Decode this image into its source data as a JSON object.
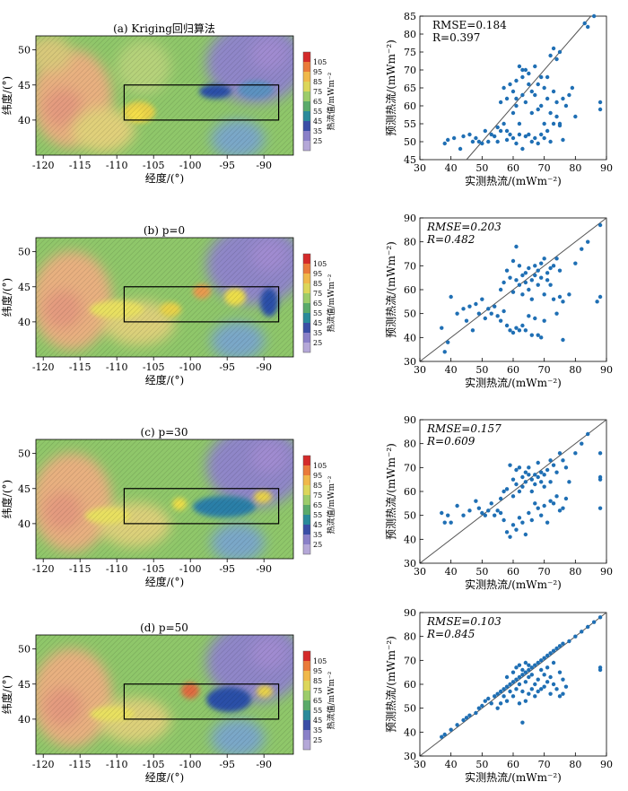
{
  "figure": {
    "map": {
      "xlabel": "经度/(°)",
      "ylabel": "纬度/(°)",
      "cbar_label": "热流值/mWm⁻²",
      "cbar_ticks": [
        25,
        35,
        45,
        55,
        65,
        75,
        85,
        95,
        105
      ],
      "xticks": [
        -120,
        -115,
        -110,
        -105,
        -100,
        -95,
        -90
      ],
      "xtick_labels": [
        "-120",
        "-115",
        "-110",
        "-105",
        "-100",
        "-95",
        "-90"
      ],
      "yticks": [
        40,
        45,
        50
      ],
      "study_box": {
        "lon": [
          -109,
          -88
        ],
        "lat": [
          40,
          45
        ]
      },
      "extent": {
        "lon": [
          -121,
          -86
        ],
        "lat": [
          35,
          52
        ]
      }
    },
    "scatter": {
      "xlabel": "实测热流/(mWm⁻²)",
      "ylabel": "预测热流/(mWm⁻²)"
    }
  },
  "panels": [
    {
      "title": "(a) Kriging回归算法",
      "metric1": "RMSE=0.184",
      "metric2": "R=0.397"
    },
    {
      "title": "(b) p=0",
      "metric1": "RMSE=0.203",
      "metric2": "R=0.482"
    },
    {
      "title": "(c) p=30",
      "metric1": "RMSE=0.157",
      "metric2": "R=0.609"
    },
    {
      "title": "(d) p=50",
      "metric1": "RMSE=0.103",
      "metric2": "R=0.845"
    }
  ],
  "chart_data": [
    {
      "type": "heatmap",
      "title": "(a) Kriging回归算法",
      "xlabel": "经度/(°)",
      "ylabel": "纬度/(°)",
      "xlim": [
        -121,
        -86
      ],
      "ylim": [
        35,
        52
      ],
      "colorbar": "热流值/mWm⁻²",
      "clim": [
        25,
        105
      ]
    },
    {
      "type": "scatter",
      "xlabel": "实测热流/(mWm⁻²)",
      "ylabel": "预测热流/(mWm⁻²)",
      "xlim": [
        30,
        90
      ],
      "ylim": [
        45,
        85
      ],
      "xticks": [
        30,
        40,
        50,
        60,
        70,
        80,
        90
      ],
      "yticks": [
        45,
        50,
        55,
        60,
        65,
        70,
        75,
        80,
        85
      ],
      "annotations": [
        "RMSE=0.184",
        "R=0.397"
      ]
    },
    {
      "type": "heatmap",
      "title": "(b) p=0",
      "xlabel": "经度/(°)",
      "ylabel": "纬度/(°)",
      "xlim": [
        -121,
        -86
      ],
      "ylim": [
        35,
        52
      ],
      "colorbar": "热流值/mWm⁻²",
      "clim": [
        25,
        105
      ]
    },
    {
      "type": "scatter",
      "xlabel": "实测热流/(mWm⁻²)",
      "ylabel": "预测热流/(mWm⁻²)",
      "xlim": [
        30,
        90
      ],
      "ylim": [
        30,
        90
      ],
      "xticks": [
        30,
        40,
        50,
        60,
        70,
        80,
        90
      ],
      "yticks": [
        30,
        40,
        50,
        60,
        70,
        80,
        90
      ],
      "annotations": [
        "RMSE=0.203",
        "R=0.482"
      ]
    },
    {
      "type": "heatmap",
      "title": "(c) p=30",
      "xlabel": "经度/(°)",
      "ylabel": "纬度/(°)",
      "xlim": [
        -121,
        -86
      ],
      "ylim": [
        35,
        52
      ],
      "colorbar": "热流值/mWm⁻²",
      "clim": [
        25,
        105
      ]
    },
    {
      "type": "scatter",
      "xlabel": "实测热流/(mWm⁻²)",
      "ylabel": "预测热流/(mWm⁻²)",
      "xlim": [
        30,
        90
      ],
      "ylim": [
        30,
        90
      ],
      "xticks": [
        30,
        40,
        50,
        60,
        70,
        80,
        90
      ],
      "yticks": [
        30,
        40,
        50,
        60,
        70,
        80,
        90
      ],
      "annotations": [
        "RMSE=0.157",
        "R=0.609"
      ]
    },
    {
      "type": "heatmap",
      "title": "(d) p=50",
      "xlabel": "经度/(°)",
      "ylabel": "纬度/(°)",
      "xlim": [
        -121,
        -86
      ],
      "ylim": [
        35,
        52
      ],
      "colorbar": "热流值/mWm⁻²",
      "clim": [
        25,
        105
      ]
    },
    {
      "type": "scatter",
      "xlabel": "实测热流/(mWm⁻²)",
      "ylabel": "预测热流/(mWm⁻²)",
      "xlim": [
        30,
        90
      ],
      "ylim": [
        30,
        90
      ],
      "xticks": [
        30,
        40,
        50,
        60,
        70,
        80,
        90
      ],
      "yticks": [
        30,
        40,
        50,
        60,
        70,
        80,
        90
      ],
      "annotations": [
        "RMSE=0.103",
        "R=0.845"
      ]
    }
  ],
  "points": {
    "a": [
      [
        38,
        49.5
      ],
      [
        39,
        50.5
      ],
      [
        41,
        51
      ],
      [
        43,
        48
      ],
      [
        44,
        51.5
      ],
      [
        46,
        52
      ],
      [
        47,
        50
      ],
      [
        48,
        51
      ],
      [
        49,
        50
      ],
      [
        50,
        49.5
      ],
      [
        51,
        53
      ],
      [
        52,
        50
      ],
      [
        53,
        52
      ],
      [
        54,
        51.5
      ],
      [
        55,
        50
      ],
      [
        56,
        53
      ],
      [
        57,
        55
      ],
      [
        58,
        50.5
      ],
      [
        58,
        53
      ],
      [
        59,
        52
      ],
      [
        60,
        51
      ],
      [
        61,
        49.5
      ],
      [
        62,
        52
      ],
      [
        63,
        48
      ],
      [
        64,
        51.5
      ],
      [
        65,
        52
      ],
      [
        66,
        50
      ],
      [
        67,
        51
      ],
      [
        68,
        49.5
      ],
      [
        69,
        52
      ],
      [
        70,
        51
      ],
      [
        71,
        53
      ],
      [
        72,
        50
      ],
      [
        73,
        55
      ],
      [
        74,
        57
      ],
      [
        75,
        54.5
      ],
      [
        76,
        50.5
      ],
      [
        55,
        54
      ],
      [
        56,
        61
      ],
      [
        57,
        65
      ],
      [
        58,
        62
      ],
      [
        59,
        66
      ],
      [
        60,
        64
      ],
      [
        60,
        58
      ],
      [
        61,
        67
      ],
      [
        61,
        60
      ],
      [
        62,
        71
      ],
      [
        62,
        55
      ],
      [
        63,
        68
      ],
      [
        63,
        63
      ],
      [
        64,
        70
      ],
      [
        64,
        61
      ],
      [
        65,
        69
      ],
      [
        65,
        66
      ],
      [
        66,
        64
      ],
      [
        66,
        58
      ],
      [
        67,
        71
      ],
      [
        67,
        63
      ],
      [
        68,
        66
      ],
      [
        68,
        59
      ],
      [
        69,
        60
      ],
      [
        69,
        68
      ],
      [
        70,
        65
      ],
      [
        70,
        55
      ],
      [
        71,
        62
      ],
      [
        71,
        68
      ],
      [
        72,
        74
      ],
      [
        72,
        58
      ],
      [
        73,
        76
      ],
      [
        73,
        64
      ],
      [
        74,
        73
      ],
      [
        74,
        61
      ],
      [
        75,
        75
      ],
      [
        75,
        55
      ],
      [
        76,
        62
      ],
      [
        77,
        60
      ],
      [
        78,
        63
      ],
      [
        79,
        65
      ],
      [
        80,
        57
      ],
      [
        83,
        83
      ],
      [
        84,
        82
      ],
      [
        86,
        85
      ],
      [
        88,
        61
      ],
      [
        88,
        59
      ],
      [
        63,
        70
      ],
      [
        61,
        62
      ]
    ],
    "b": [
      [
        37,
        44
      ],
      [
        38,
        34
      ],
      [
        39,
        38
      ],
      [
        40,
        57
      ],
      [
        42,
        50
      ],
      [
        44,
        52
      ],
      [
        46,
        53
      ],
      [
        48,
        54
      ],
      [
        49,
        50
      ],
      [
        50,
        56
      ],
      [
        51,
        48
      ],
      [
        52,
        52
      ],
      [
        53,
        50
      ],
      [
        54,
        53
      ],
      [
        55,
        49
      ],
      [
        56,
        47
      ],
      [
        57,
        51
      ],
      [
        58,
        45
      ],
      [
        59,
        43
      ],
      [
        60,
        42
      ],
      [
        61,
        44
      ],
      [
        62,
        43
      ],
      [
        63,
        45
      ],
      [
        64,
        43
      ],
      [
        65,
        49
      ],
      [
        66,
        41
      ],
      [
        67,
        48
      ],
      [
        68,
        41
      ],
      [
        69,
        40
      ],
      [
        70,
        47
      ],
      [
        74,
        50
      ],
      [
        76,
        39
      ],
      [
        56,
        60
      ],
      [
        57,
        63
      ],
      [
        58,
        68
      ],
      [
        59,
        65
      ],
      [
        60,
        72
      ],
      [
        60,
        59
      ],
      [
        61,
        64
      ],
      [
        61,
        78
      ],
      [
        62,
        70
      ],
      [
        62,
        62
      ],
      [
        63,
        66
      ],
      [
        63,
        58
      ],
      [
        64,
        67
      ],
      [
        64,
        63
      ],
      [
        65,
        69
      ],
      [
        65,
        60
      ],
      [
        66,
        64
      ],
      [
        66,
        56
      ],
      [
        67,
        66
      ],
      [
        67,
        70
      ],
      [
        68,
        62
      ],
      [
        68,
        68
      ],
      [
        69,
        65
      ],
      [
        69,
        71
      ],
      [
        70,
        73
      ],
      [
        70,
        58
      ],
      [
        71,
        67
      ],
      [
        71,
        64
      ],
      [
        72,
        69
      ],
      [
        72,
        62
      ],
      [
        73,
        70
      ],
      [
        73,
        56
      ],
      [
        74,
        73
      ],
      [
        75,
        68
      ],
      [
        75,
        57
      ],
      [
        76,
        55
      ],
      [
        78,
        58
      ],
      [
        80,
        71
      ],
      [
        82,
        77
      ],
      [
        84,
        80
      ],
      [
        88,
        87
      ],
      [
        88,
        57
      ],
      [
        87,
        55
      ],
      [
        45,
        47
      ],
      [
        47,
        43
      ]
    ],
    "c": [
      [
        37,
        51
      ],
      [
        38,
        47
      ],
      [
        39,
        50
      ],
      [
        40,
        47
      ],
      [
        42,
        54
      ],
      [
        44,
        50
      ],
      [
        46,
        52
      ],
      [
        48,
        56
      ],
      [
        49,
        53
      ],
      [
        50,
        51
      ],
      [
        51,
        50
      ],
      [
        52,
        52
      ],
      [
        53,
        55
      ],
      [
        54,
        50
      ],
      [
        55,
        52
      ],
      [
        56,
        51
      ],
      [
        57,
        48
      ],
      [
        58,
        43
      ],
      [
        59,
        41
      ],
      [
        60,
        46
      ],
      [
        61,
        44
      ],
      [
        62,
        49
      ],
      [
        63,
        47
      ],
      [
        64,
        42
      ],
      [
        65,
        51
      ],
      [
        66,
        48
      ],
      [
        67,
        55
      ],
      [
        68,
        53
      ],
      [
        69,
        50
      ],
      [
        70,
        54
      ],
      [
        71,
        47
      ],
      [
        72,
        56
      ],
      [
        73,
        55
      ],
      [
        74,
        58
      ],
      [
        75,
        52
      ],
      [
        76,
        53
      ],
      [
        77,
        57
      ],
      [
        56,
        57
      ],
      [
        57,
        60
      ],
      [
        58,
        61
      ],
      [
        59,
        71
      ],
      [
        60,
        65
      ],
      [
        60,
        58
      ],
      [
        61,
        63
      ],
      [
        61,
        69
      ],
      [
        62,
        70
      ],
      [
        62,
        60
      ],
      [
        63,
        66
      ],
      [
        63,
        62
      ],
      [
        64,
        68
      ],
      [
        64,
        64
      ],
      [
        65,
        67
      ],
      [
        65,
        70
      ],
      [
        66,
        60
      ],
      [
        66,
        65
      ],
      [
        67,
        63
      ],
      [
        67,
        67
      ],
      [
        68,
        66
      ],
      [
        68,
        72
      ],
      [
        69,
        64
      ],
      [
        69,
        68
      ],
      [
        70,
        67
      ],
      [
        70,
        62
      ],
      [
        71,
        69
      ],
      [
        72,
        73
      ],
      [
        72,
        64
      ],
      [
        73,
        71
      ],
      [
        74,
        68
      ],
      [
        75,
        76
      ],
      [
        76,
        73
      ],
      [
        77,
        70
      ],
      [
        78,
        64
      ],
      [
        80,
        76
      ],
      [
        82,
        80
      ],
      [
        84,
        84
      ],
      [
        88,
        76
      ],
      [
        88,
        66
      ],
      [
        88,
        65
      ],
      [
        88,
        53
      ]
    ],
    "d": [
      [
        37,
        38
      ],
      [
        38,
        39
      ],
      [
        40,
        41
      ],
      [
        42,
        43
      ],
      [
        44,
        45
      ],
      [
        45,
        46
      ],
      [
        46,
        47
      ],
      [
        48,
        48
      ],
      [
        49,
        50
      ],
      [
        50,
        51
      ],
      [
        51,
        53
      ],
      [
        52,
        54
      ],
      [
        53,
        52
      ],
      [
        54,
        55
      ],
      [
        55,
        56
      ],
      [
        56,
        57
      ],
      [
        57,
        58
      ],
      [
        58,
        59
      ],
      [
        59,
        60
      ],
      [
        60,
        61
      ],
      [
        61,
        62
      ],
      [
        62,
        63
      ],
      [
        63,
        64
      ],
      [
        64,
        65
      ],
      [
        65,
        66
      ],
      [
        66,
        67
      ],
      [
        67,
        68
      ],
      [
        68,
        69
      ],
      [
        69,
        70
      ],
      [
        70,
        71
      ],
      [
        71,
        72
      ],
      [
        72,
        73
      ],
      [
        73,
        74
      ],
      [
        74,
        75
      ],
      [
        75,
        76
      ],
      [
        76,
        77
      ],
      [
        78,
        78
      ],
      [
        80,
        80
      ],
      [
        82,
        82
      ],
      [
        84,
        84
      ],
      [
        86,
        86
      ],
      [
        88,
        88
      ],
      [
        88,
        67
      ],
      [
        88,
        66
      ],
      [
        55,
        50
      ],
      [
        56,
        52
      ],
      [
        57,
        55
      ],
      [
        58,
        53
      ],
      [
        59,
        57
      ],
      [
        60,
        55
      ],
      [
        61,
        58
      ],
      [
        62,
        60
      ],
      [
        62,
        52
      ],
      [
        63,
        57
      ],
      [
        63,
        44
      ],
      [
        64,
        61
      ],
      [
        64,
        53
      ],
      [
        65,
        63
      ],
      [
        65,
        56
      ],
      [
        66,
        58
      ],
      [
        66,
        64
      ],
      [
        67,
        60
      ],
      [
        67,
        55
      ],
      [
        68,
        62
      ],
      [
        68,
        57
      ],
      [
        69,
        66
      ],
      [
        69,
        58
      ],
      [
        70,
        64
      ],
      [
        70,
        59
      ],
      [
        71,
        61
      ],
      [
        71,
        67
      ],
      [
        72,
        63
      ],
      [
        72,
        56
      ],
      [
        73,
        60
      ],
      [
        73,
        69
      ],
      [
        74,
        58
      ],
      [
        75,
        55
      ],
      [
        75,
        65
      ],
      [
        76,
        56
      ],
      [
        76,
        62
      ],
      [
        77,
        59
      ],
      [
        58,
        63
      ],
      [
        60,
        65
      ],
      [
        61,
        67
      ],
      [
        62,
        68
      ],
      [
        63,
        66
      ],
      [
        64,
        69
      ],
      [
        65,
        68
      ]
    ]
  }
}
